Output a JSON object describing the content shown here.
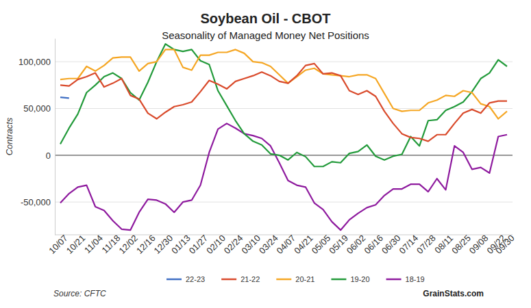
{
  "chart_data": {
    "type": "line",
    "title": "Soybean Oil - CBOT",
    "subtitle": "Seasonality of Managed Money Net Positions",
    "y_label": "Contracts",
    "source": "Source: CFTC",
    "watermark": "GrainStats.com",
    "categories": [
      "10/07",
      null,
      "10/21",
      null,
      "11/04",
      null,
      "11/18",
      null,
      "12/02",
      null,
      "12/16",
      null,
      "12/30",
      null,
      "01/13",
      null,
      "01/27",
      null,
      "02/10",
      null,
      "02/24",
      null,
      "03/10",
      null,
      "03/24",
      null,
      "04/07",
      null,
      "04/21",
      null,
      "05/05",
      null,
      "05/19",
      null,
      "06/02",
      null,
      "06/16",
      null,
      "06/30",
      null,
      "07/14",
      null,
      "07/28",
      null,
      "08/11",
      null,
      "08/25",
      null,
      "09/08",
      null,
      "09/22",
      "09/30"
    ],
    "ylim": [
      -85000,
      125000
    ],
    "yticks": [
      {
        "value": -50000,
        "label": "-50,000"
      },
      0,
      {
        "value": 50000,
        "label": "50,000"
      },
      {
        "value": 100000,
        "label": "100,000"
      }
    ],
    "grid": true,
    "legend": "bottom",
    "series": [
      {
        "name": "22-23",
        "color": "#3f6fc4",
        "values": [
          62000,
          61000,
          null,
          null,
          null,
          null,
          null,
          null,
          null,
          null,
          null,
          null,
          null,
          null,
          null,
          null,
          null,
          null,
          null,
          null,
          null,
          null,
          null,
          null,
          null,
          null,
          null,
          null,
          null,
          null,
          null,
          null,
          null,
          null,
          null,
          null,
          null,
          null,
          null,
          null,
          null,
          null,
          null,
          null,
          null,
          null,
          null,
          null,
          null,
          null,
          null,
          null
        ]
      },
      {
        "name": "21-22",
        "color": "#d94a2b",
        "values": [
          75000,
          74000,
          81000,
          84000,
          88000,
          73000,
          77000,
          82000,
          64000,
          60000,
          45000,
          39000,
          46000,
          52000,
          54000,
          57000,
          68000,
          80000,
          76000,
          71000,
          79000,
          82000,
          85000,
          89000,
          85000,
          79000,
          77000,
          85000,
          96000,
          98000,
          87000,
          88000,
          85000,
          69000,
          65000,
          69000,
          63000,
          47000,
          34000,
          23000,
          19000,
          18000,
          15000,
          22000,
          22000,
          34000,
          45000,
          49000,
          45000,
          56000,
          58000,
          58000
        ]
      },
      {
        "name": "20-21",
        "color": "#f5a623",
        "values": [
          81000,
          82000,
          82000,
          95000,
          90000,
          96000,
          104000,
          105000,
          105000,
          90000,
          98000,
          100000,
          113000,
          113000,
          94000,
          91000,
          107000,
          107000,
          110000,
          110000,
          113000,
          109000,
          100000,
          99000,
          95000,
          86000,
          77000,
          84000,
          91000,
          93000,
          87000,
          86000,
          85000,
          84000,
          86000,
          86000,
          82000,
          66000,
          50000,
          47000,
          48000,
          48000,
          56000,
          59000,
          64000,
          63000,
          69000,
          67000,
          55000,
          52000,
          39000,
          47000
        ]
      },
      {
        "name": "19-20",
        "color": "#229a3a",
        "values": [
          12000,
          29000,
          44000,
          67000,
          75000,
          84000,
          88000,
          82000,
          67000,
          59000,
          78000,
          100000,
          119000,
          113000,
          111000,
          113000,
          101000,
          97000,
          69000,
          53000,
          37000,
          23000,
          15000,
          11000,
          1500,
          0,
          -5000,
          3000,
          -1500,
          -12000,
          -12000,
          -7000,
          -8000,
          2000,
          4000,
          11000,
          -1000,
          -5000,
          -1000,
          1000,
          20000,
          10000,
          37000,
          38000,
          48000,
          52000,
          57000,
          68000,
          82000,
          88000,
          102000,
          95000
        ]
      },
      {
        "name": "18-19",
        "color": "#8e1a9e",
        "values": [
          -51000,
          -41000,
          -34000,
          -32000,
          -55000,
          -59000,
          -70000,
          -79000,
          -80000,
          -61000,
          -47000,
          -48000,
          -52000,
          -61000,
          -50000,
          -48000,
          -32000,
          3000,
          28000,
          34000,
          29000,
          23000,
          21000,
          18000,
          10000,
          -8000,
          -27000,
          -32000,
          -34000,
          -51000,
          -58000,
          -71000,
          -80000,
          -69000,
          -62000,
          -56000,
          -53000,
          -43000,
          -36000,
          -36000,
          -31000,
          -31000,
          -39000,
          -25000,
          -37000,
          10000,
          3000,
          -15000,
          -13000,
          -19000,
          20000,
          22000
        ]
      }
    ]
  }
}
